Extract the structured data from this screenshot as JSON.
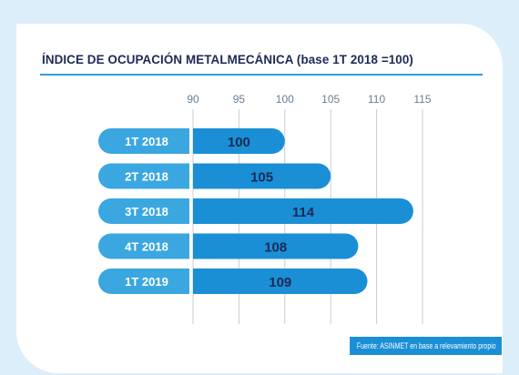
{
  "chart_data": {
    "type": "bar",
    "orientation": "horizontal",
    "title": "ÍNDICE DE OCUPACIÓN METALMECÁNICA (base 1T 2018 =100)",
    "categories": [
      "1T 2018",
      "2T 2018",
      "3T 2018",
      "4T 2018",
      "1T 2019"
    ],
    "values": [
      100,
      105,
      114,
      108,
      109
    ],
    "value_labels": [
      "100",
      "105",
      "114",
      "108",
      "109"
    ],
    "xticks": [
      90,
      95,
      100,
      105,
      110,
      115
    ],
    "xtick_labels": [
      "90",
      "95",
      "100",
      "105",
      "110",
      "115"
    ],
    "xlim": [
      90,
      115
    ],
    "xlabel": "",
    "ylabel": "",
    "grid": "vertical",
    "colors": {
      "label_bg": "#3aa7e0",
      "bar": "#1a8fd6",
      "bar_text": "#1c2a55",
      "label_text": "#ffffff",
      "grid": "#c7cdd3",
      "tick_text": "#6a7f92"
    }
  },
  "source": "Fuente: ASINMET en base a relevamiento propio"
}
